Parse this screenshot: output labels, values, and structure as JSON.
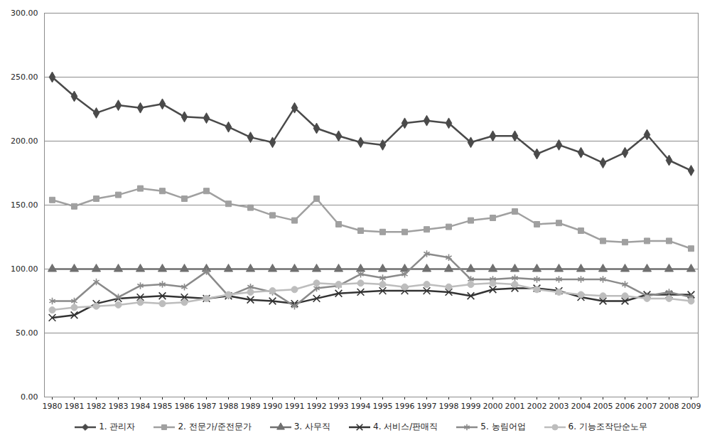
{
  "chart_data": {
    "type": "line",
    "x": [
      1980,
      1981,
      1982,
      1983,
      1984,
      1985,
      1986,
      1987,
      1988,
      1989,
      1990,
      1991,
      1992,
      1993,
      1994,
      1995,
      1996,
      1997,
      1998,
      1999,
      2000,
      2001,
      2002,
      2003,
      2004,
      2005,
      2006,
      2007,
      2008,
      2009
    ],
    "ylim": [
      0,
      300
    ],
    "yticks": [
      {
        "value": 0,
        "label": "0.00"
      },
      {
        "value": 50,
        "label": "50.00"
      },
      {
        "value": 100,
        "label": "100.00"
      },
      {
        "value": 150,
        "label": "150.00"
      },
      {
        "value": 200,
        "label": "200.00"
      },
      {
        "value": 250,
        "label": "250.00"
      },
      {
        "value": 300,
        "label": "300.00"
      }
    ],
    "grid": true,
    "legend": "bottom",
    "series": [
      {
        "name": "1. 관리자",
        "color": "#4a4a4a",
        "marker": "diamond",
        "values": [
          250,
          235,
          222,
          228,
          226,
          229,
          219,
          218,
          211,
          203,
          199,
          226,
          210,
          204,
          199,
          197,
          214,
          216,
          214,
          199,
          204,
          204,
          190,
          197,
          191,
          183,
          191,
          205,
          185,
          177
        ]
      },
      {
        "name": "2. 전문가/준전문가",
        "color": "#a0a0a0",
        "marker": "square",
        "values": [
          154,
          149,
          155,
          158,
          163,
          161,
          155,
          161,
          151,
          148,
          142,
          138,
          155,
          135,
          130,
          129,
          129,
          131,
          133,
          138,
          140,
          145,
          135,
          136,
          130,
          122,
          121,
          122,
          122,
          116
        ]
      },
      {
        "name": "3. 사무직",
        "color": "#707070",
        "marker": "triangle",
        "values": [
          100,
          100,
          100,
          100,
          100,
          100,
          100,
          100,
          100,
          100,
          100,
          100,
          100,
          100,
          100,
          100,
          100,
          100,
          100,
          100,
          100,
          100,
          100,
          100,
          100,
          100,
          100,
          100,
          100,
          100
        ]
      },
      {
        "name": "4. 서비스/판매직",
        "color": "#333333",
        "marker": "times",
        "values": [
          62,
          64,
          73,
          77,
          78,
          79,
          78,
          77,
          79,
          76,
          75,
          73,
          77,
          81,
          82,
          83,
          83,
          83,
          82,
          79,
          84,
          85,
          85,
          83,
          78,
          75,
          75,
          80,
          80,
          80
        ]
      },
      {
        "name": "5. 농림어업",
        "color": "#8a8a8a",
        "marker": "asterisk",
        "values": [
          75,
          75,
          90,
          78,
          87,
          88,
          86,
          98,
          79,
          86,
          82,
          71,
          85,
          87,
          96,
          93,
          96,
          112,
          109,
          92,
          92,
          93,
          92,
          92,
          92,
          92,
          88,
          79,
          82,
          78
        ]
      },
      {
        "name": "6. 기능조작단순노무",
        "color": "#bdbdbd",
        "marker": "circle",
        "values": [
          68,
          70,
          71,
          72,
          74,
          73,
          74,
          77,
          80,
          82,
          83,
          84,
          89,
          88,
          89,
          88,
          86,
          88,
          86,
          88,
          89,
          88,
          84,
          82,
          80,
          79,
          79,
          77,
          77,
          75
        ]
      }
    ]
  }
}
